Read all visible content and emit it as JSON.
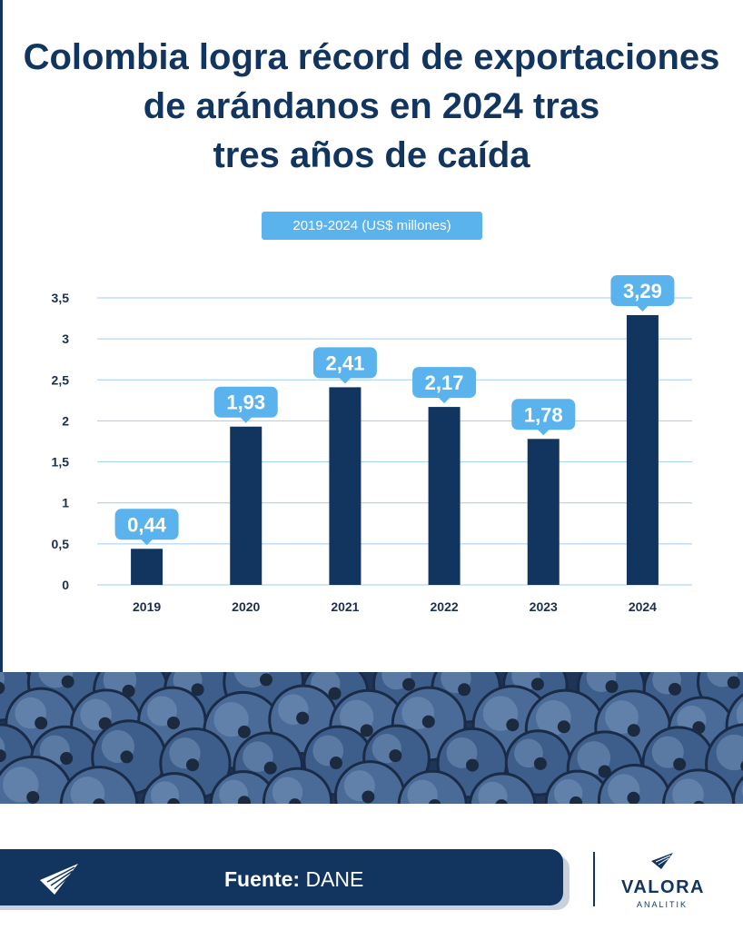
{
  "title": "Colombia logra récord de exportaciones\nde arándanos en 2024 tras\ntres años de caída",
  "subtitle": "2019-2024 (US$ millones)",
  "footer": {
    "source_label": "Fuente:",
    "source_value": "DANE",
    "brand_name": "VALORA",
    "brand_sub": "ANALITIK"
  },
  "colors": {
    "bar": "#12355f",
    "label_pill": "#5bb3ee",
    "gridline": "#9fcdf0",
    "title": "#12355f"
  },
  "icons": [
    "valora-analitik-logo-icon",
    "paper-plane-logo-icon"
  ],
  "chart_data": {
    "type": "bar",
    "categories": [
      "2019",
      "2020",
      "2021",
      "2022",
      "2023",
      "2024"
    ],
    "values": [
      0.44,
      1.93,
      2.41,
      2.17,
      1.78,
      3.29
    ],
    "value_labels": [
      "0,44",
      "1,93",
      "2,41",
      "2,17",
      "1,78",
      "3,29"
    ],
    "y_ticks": [
      0,
      0.5,
      1,
      1.5,
      2,
      2.5,
      3,
      3.5
    ],
    "y_tick_labels": [
      "0",
      "0,5",
      "1",
      "1,5",
      "2",
      "2,5",
      "3",
      "3,5"
    ],
    "ylim": [
      0,
      3.5
    ],
    "grid": true,
    "legend": "none"
  }
}
